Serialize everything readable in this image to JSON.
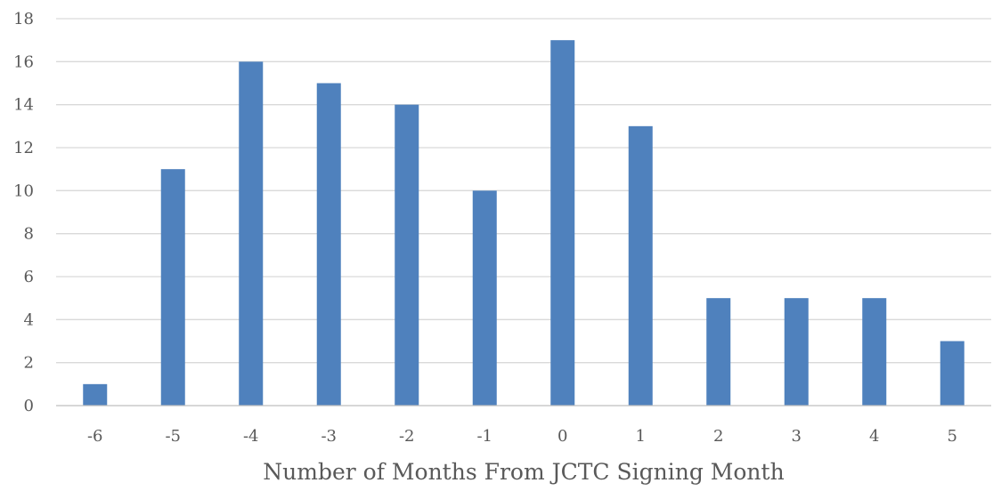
{
  "chart_data": {
    "type": "bar",
    "title": "",
    "xlabel": "Number of Months From JCTC Signing Month",
    "ylabel": "",
    "categories": [
      "-6",
      "-5",
      "-4",
      "-3",
      "-2",
      "-1",
      "0",
      "1",
      "2",
      "3",
      "4",
      "5"
    ],
    "values": [
      1,
      11,
      16,
      15,
      14,
      10,
      17,
      13,
      5,
      5,
      5,
      3
    ],
    "ylim": [
      0,
      18
    ],
    "yticks": [
      0,
      2,
      4,
      6,
      8,
      10,
      12,
      14,
      16,
      18
    ],
    "grid": true,
    "legend": "none",
    "colors": {
      "bar": "#4F81BD",
      "grid": "#D9D9D9",
      "axis": "#BFBFBF",
      "text": "#595959"
    }
  }
}
